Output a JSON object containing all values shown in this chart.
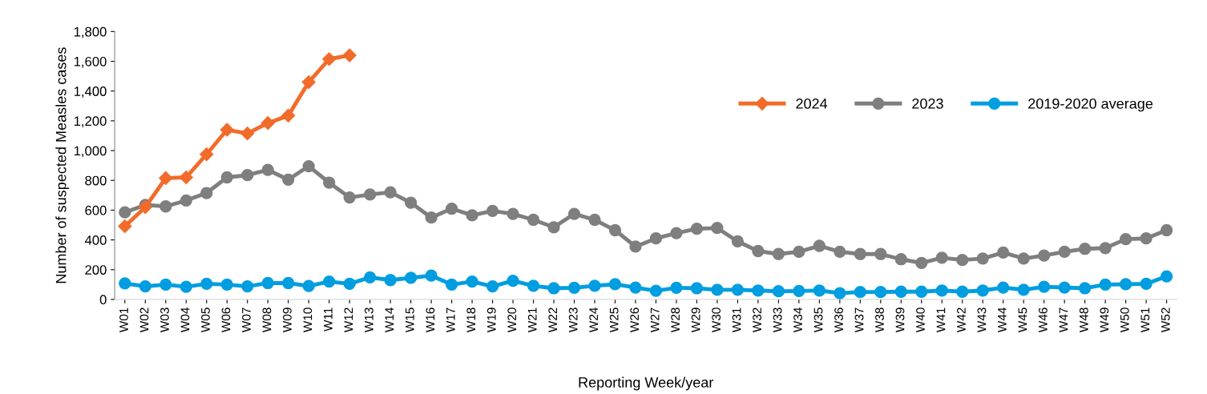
{
  "chart_data": {
    "type": "line",
    "xlabel": "Reporting Week/year",
    "ylabel": "Number of suspected Measles cases",
    "categories": [
      "W01",
      "W02",
      "W03",
      "W04",
      "W05",
      "W06",
      "W07",
      "W08",
      "W09",
      "W10",
      "W11",
      "W12",
      "W13",
      "W14",
      "W15",
      "W16",
      "W17",
      "W18",
      "W19",
      "W20",
      "W21",
      "W22",
      "W23",
      "W24",
      "W25",
      "W26",
      "W27",
      "W28",
      "W29",
      "W30",
      "W31",
      "W32",
      "W33",
      "W34",
      "W35",
      "W36",
      "W37",
      "W38",
      "W39",
      "W40",
      "W41",
      "W42",
      "W43",
      "W44",
      "W45",
      "W46",
      "W47",
      "W48",
      "W49",
      "W50",
      "W51",
      "W52"
    ],
    "series": [
      {
        "name": "2024",
        "color": "#f26b2a",
        "marker": "diamond",
        "values": [
          492,
          620,
          815,
          820,
          975,
          1140,
          1115,
          1185,
          1235,
          1460,
          1615,
          1640,
          null,
          null,
          null,
          null,
          null,
          null,
          null,
          null,
          null,
          null,
          null,
          null,
          null,
          null,
          null,
          null,
          null,
          null,
          null,
          null,
          null,
          null,
          null,
          null,
          null,
          null,
          null,
          null,
          null,
          null,
          null,
          null,
          null,
          null,
          null,
          null,
          null,
          null,
          null,
          null
        ]
      },
      {
        "name": "2023",
        "color": "#7f7f7f",
        "marker": "circle",
        "values": [
          585,
          635,
          625,
          665,
          715,
          820,
          835,
          870,
          805,
          895,
          785,
          685,
          705,
          720,
          650,
          550,
          610,
          565,
          595,
          575,
          535,
          485,
          575,
          535,
          465,
          355,
          410,
          445,
          475,
          480,
          390,
          325,
          305,
          320,
          360,
          320,
          305,
          305,
          270,
          245,
          280,
          265,
          275,
          315,
          275,
          295,
          320,
          340,
          345,
          405,
          410,
          465
        ]
      },
      {
        "name": "2019-2020 average",
        "color": "#009ee0",
        "marker": "circle",
        "values": [
          108,
          88,
          100,
          85,
          105,
          100,
          88,
          110,
          110,
          90,
          120,
          105,
          148,
          130,
          145,
          160,
          100,
          120,
          88,
          125,
          92,
          75,
          78,
          92,
          102,
          80,
          58,
          78,
          75,
          65,
          65,
          60,
          55,
          57,
          60,
          42,
          50,
          50,
          52,
          52,
          60,
          52,
          60,
          80,
          65,
          85,
          80,
          75,
          100,
          102,
          105,
          155
        ]
      }
    ],
    "ylim": [
      0,
      1800
    ],
    "yticks": [
      {
        "value": 0,
        "label": "0"
      },
      {
        "value": 200,
        "label": "200"
      },
      {
        "value": 400,
        "label": "400"
      },
      {
        "value": 600,
        "label": "600"
      },
      {
        "value": 800,
        "label": "800"
      },
      {
        "value": 1000,
        "label": "1,000"
      },
      {
        "value": 1200,
        "label": "1,200"
      },
      {
        "value": 1400,
        "label": "1,400"
      },
      {
        "value": 1600,
        "label": "1,600"
      },
      {
        "value": 1800,
        "label": "1,800"
      }
    ],
    "grid": false,
    "legend": "top right",
    "line_style": "solid"
  }
}
